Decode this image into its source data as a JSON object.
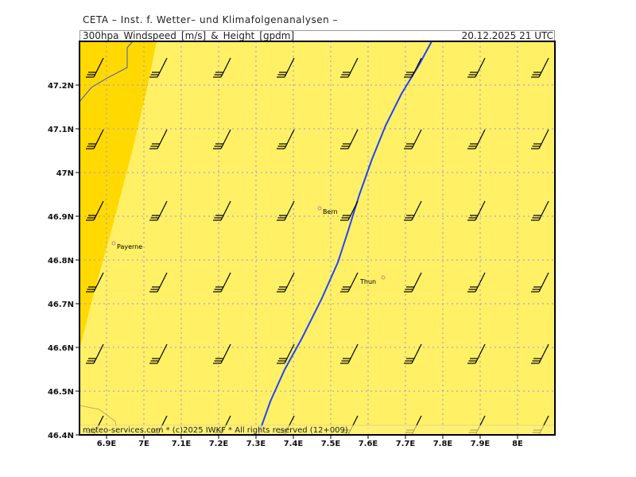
{
  "header": {
    "org": "CETA – Inst. f. Wetter– und Klimafolgenanalysen –",
    "parameter": "300hpa_Windspeed_[m/s]_&_Height_[gpdm]",
    "valid_time": "20.12.2025 21 UTC"
  },
  "colors": {
    "fill_light": "#fff066",
    "fill_dark": "#ffd900",
    "height_contour": "#2244ff",
    "grid": "#9999dd"
  },
  "axes": {
    "lat_labels": [
      "47.2N",
      "47.1N",
      "47N",
      "46.9N",
      "46.8N",
      "46.7N",
      "46.6N",
      "46.5N",
      "46.4N"
    ],
    "lon_labels": [
      "6.9E",
      "7E",
      "7.1E",
      "7.2E",
      "7.3E",
      "7.4E",
      "7.5E",
      "7.6E",
      "7.7E",
      "7.8E",
      "7.9E",
      "8E"
    ]
  },
  "cities": [
    {
      "name": "Bern"
    },
    {
      "name": "Payerne"
    },
    {
      "name": "Thun"
    }
  ],
  "wind_barbs": {
    "symbol": "wind-barb-icon",
    "direction": "southwest",
    "barbs": 3
  },
  "footer": "meteo-services.com * (c)2025 IWKF * All rights reserved (12+009)"
}
